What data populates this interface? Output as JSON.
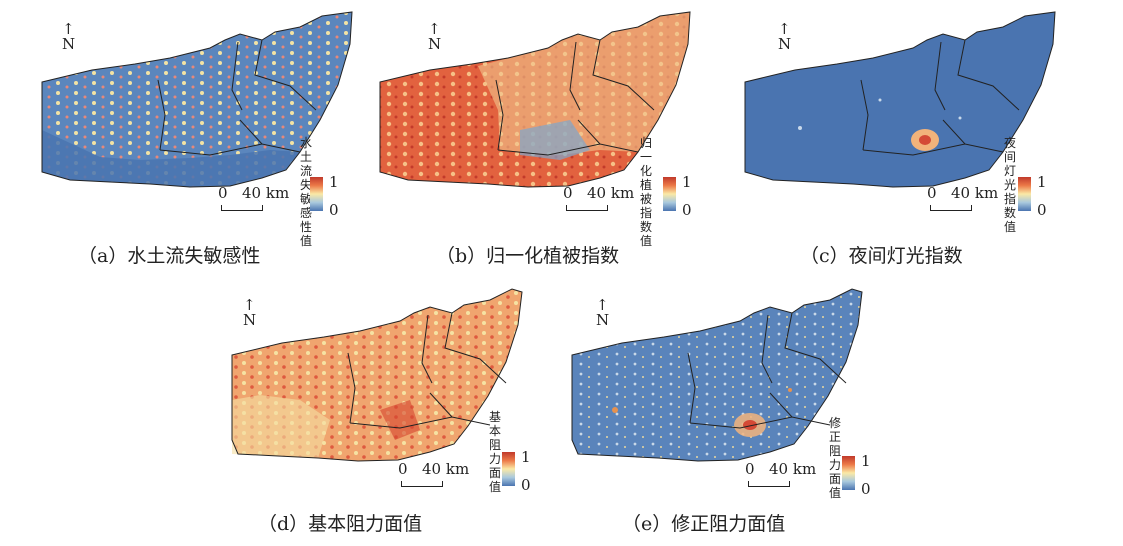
{
  "north_label": "N",
  "scale": {
    "zero": "0",
    "distance": "40 km"
  },
  "legend_range": {
    "high": "1",
    "low": "0"
  },
  "colors": {
    "low": "#4a74b0",
    "mid": "#fbe9a6",
    "high": "#c0392b"
  },
  "panels": [
    {
      "id": "a",
      "legend_title": "水土流失\n敏感性值",
      "caption": "（a）水土流失敏感性"
    },
    {
      "id": "b",
      "legend_title": "归一化植\n被指数值",
      "caption": "（b）归一化植被指数"
    },
    {
      "id": "c",
      "legend_title": "夜间灯光\n指数值",
      "caption": "（c）夜间灯光指数"
    },
    {
      "id": "d",
      "legend_title": "基本阻\n力面值",
      "caption": "（d）基本阻力面值"
    },
    {
      "id": "e",
      "legend_title": "修正阻\n力面值",
      "caption": "（e）修正阻力面值"
    }
  ]
}
